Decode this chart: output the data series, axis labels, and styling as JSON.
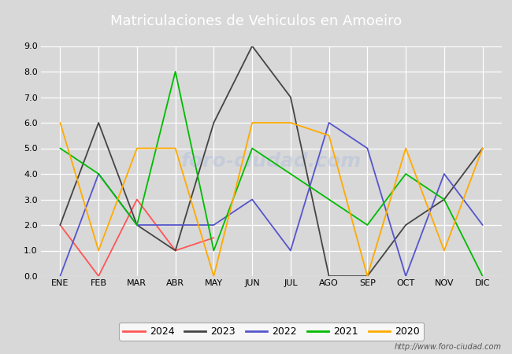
{
  "title": "Matriculaciones de Vehiculos en Amoeiro",
  "title_bg_color": "#4e6fad",
  "title_text_color": "white",
  "fig_bg_color": "#d8d8d8",
  "plot_bg_color": "#d8d8d8",
  "months": [
    "ENE",
    "FEB",
    "MAR",
    "ABR",
    "MAY",
    "JUN",
    "JUL",
    "AGO",
    "SEP",
    "OCT",
    "NOV",
    "DIC"
  ],
  "ylim": [
    0.0,
    9.0
  ],
  "yticks": [
    0.0,
    1.0,
    2.0,
    3.0,
    4.0,
    5.0,
    6.0,
    7.0,
    8.0,
    9.0
  ],
  "series": {
    "2024": {
      "color": "#ff5555",
      "values": [
        2.0,
        0.0,
        3.0,
        1.0,
        1.5,
        null,
        null,
        null,
        null,
        null,
        null,
        null
      ]
    },
    "2023": {
      "color": "#444444",
      "values": [
        2.0,
        6.0,
        2.0,
        1.0,
        6.0,
        9.0,
        7.0,
        0.0,
        0.0,
        2.0,
        3.0,
        5.0
      ]
    },
    "2022": {
      "color": "#5555cc",
      "values": [
        0.0,
        4.0,
        2.0,
        2.0,
        2.0,
        3.0,
        1.0,
        6.0,
        5.0,
        0.0,
        4.0,
        2.0
      ]
    },
    "2021": {
      "color": "#00bb00",
      "values": [
        5.0,
        4.0,
        2.0,
        8.0,
        1.0,
        5.0,
        4.0,
        3.0,
        2.0,
        4.0,
        3.0,
        0.0
      ]
    },
    "2020": {
      "color": "#ffaa00",
      "values": [
        6.0,
        1.0,
        5.0,
        5.0,
        0.0,
        6.0,
        6.0,
        5.5,
        0.0,
        5.0,
        1.0,
        5.0
      ]
    }
  },
  "url_text": "http://www.foro-ciudad.com",
  "legend_order": [
    "2024",
    "2023",
    "2022",
    "2021",
    "2020"
  ],
  "watermark": "foro-ciudad.com"
}
